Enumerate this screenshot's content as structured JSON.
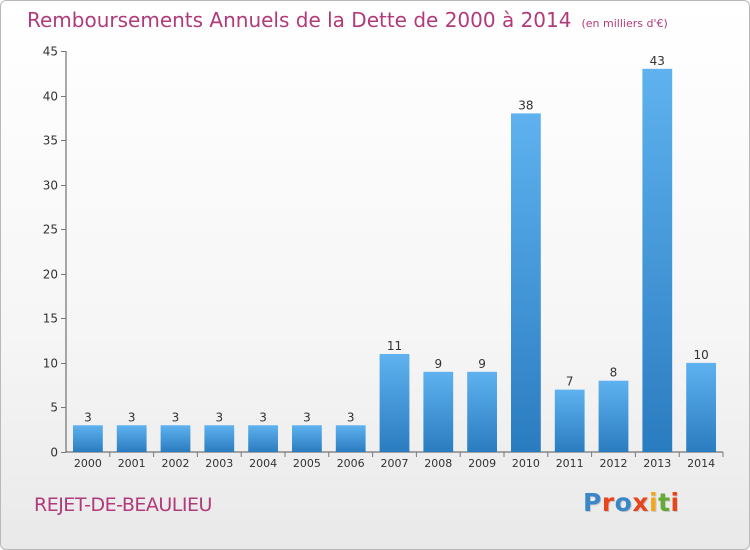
{
  "title": "Remboursements Annuels de la Dette de 2000 à 2014",
  "subtitle": "(en milliers d'€)",
  "commune": "REJET-DE-BEAULIEU",
  "logo": {
    "text": "Proxiti",
    "colors": [
      "#3a86c8",
      "#e8451f",
      "#3a86c8",
      "#e8451f",
      "#f2a81d",
      "#66aa33",
      "#e8451f"
    ]
  },
  "colors": {
    "title": "#b03a7a",
    "bar_light": "#5aaceb",
    "bar_dark": "#2a7cc0",
    "axis": "#555555",
    "grid_tick": "#888888"
  },
  "chart_data": {
    "type": "bar",
    "categories": [
      "2000",
      "2001",
      "2002",
      "2003",
      "2004",
      "2005",
      "2006",
      "2007",
      "2008",
      "2009",
      "2010",
      "2011",
      "2012",
      "2013",
      "2014"
    ],
    "values": [
      3,
      3,
      3,
      3,
      3,
      3,
      3,
      11,
      9,
      9,
      38,
      7,
      8,
      43,
      10
    ],
    "ylim": [
      0,
      45
    ],
    "yticks": [
      0,
      5,
      10,
      15,
      20,
      25,
      30,
      35,
      40,
      45
    ],
    "xlabel": "",
    "ylabel": "",
    "grid": false,
    "legend": "none"
  }
}
